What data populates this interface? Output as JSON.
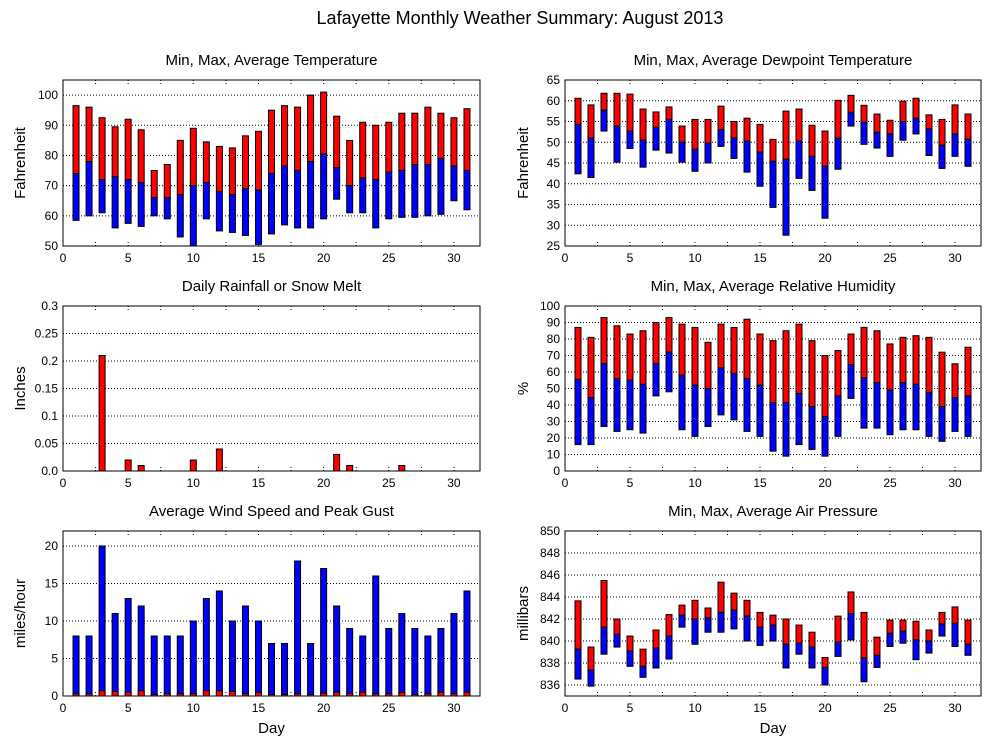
{
  "title": "Lafayette Monthly Weather Summary: August 2013",
  "colors": {
    "max": "#ff0000",
    "min": "#0000ff",
    "outline": "#000000"
  },
  "chart_data": [
    {
      "type": "bar",
      "title": "Min, Max, Average Temperature",
      "ylabel": "Fahrenheit",
      "xlabel": "",
      "xlim": [
        0,
        32
      ],
      "xticks": [
        0,
        5,
        10,
        15,
        20,
        25,
        30
      ],
      "ylim": [
        50,
        105
      ],
      "yticks": [
        50,
        60,
        70,
        80,
        90,
        100
      ],
      "ytick_labels": [
        "50",
        "60",
        "70",
        "80",
        "90",
        "100"
      ],
      "grid": true,
      "x": [
        1,
        2,
        3,
        4,
        5,
        6,
        7,
        8,
        9,
        10,
        11,
        12,
        13,
        14,
        15,
        16,
        17,
        18,
        19,
        20,
        21,
        22,
        23,
        24,
        25,
        26,
        27,
        28,
        29,
        30,
        31
      ],
      "series": [
        {
          "name": "Max",
          "values": [
            96.5,
            96,
            92.5,
            89.5,
            92,
            88.5,
            75,
            77,
            85,
            89,
            84.5,
            83,
            82.5,
            86.5,
            88,
            95,
            96.5,
            96,
            100,
            101,
            93,
            85,
            91,
            90,
            91,
            94,
            94,
            96,
            94,
            92.5,
            95.5
          ]
        },
        {
          "name": "Average",
          "values": [
            74,
            78,
            72,
            73,
            72,
            71,
            66,
            66,
            67,
            70,
            71,
            68,
            67,
            69,
            68.5,
            74,
            76.5,
            75,
            78,
            80.5,
            76,
            70,
            72.5,
            72,
            74.5,
            75,
            77,
            77,
            79,
            76.5,
            75
          ]
        },
        {
          "name": "Min",
          "values": [
            58.5,
            60,
            61,
            56,
            57.5,
            56.5,
            60,
            59,
            53,
            50,
            59,
            55,
            54.5,
            53.5,
            50.5,
            54,
            57,
            56,
            56,
            59,
            65.5,
            61,
            61,
            56,
            59,
            59.5,
            59.5,
            60,
            60.5,
            65,
            62
          ]
        }
      ]
    },
    {
      "type": "bar",
      "title": "Min, Max, Average Dewpoint Temperature",
      "ylabel": "Fahrenheit",
      "xlabel": "",
      "xlim": [
        0,
        32
      ],
      "xticks": [
        0,
        5,
        10,
        15,
        20,
        25,
        30
      ],
      "ylim": [
        25,
        65
      ],
      "yticks": [
        25,
        30,
        35,
        40,
        45,
        50,
        55,
        60,
        65
      ],
      "ytick_labels": [
        "25",
        "30",
        "35",
        "40",
        "45",
        "50",
        "55",
        "60",
        "65"
      ],
      "grid": true,
      "x": [
        1,
        2,
        3,
        4,
        5,
        6,
        7,
        8,
        9,
        10,
        11,
        12,
        13,
        14,
        15,
        16,
        17,
        18,
        19,
        20,
        21,
        22,
        23,
        24,
        25,
        26,
        27,
        28,
        29,
        30,
        31
      ],
      "series": [
        {
          "name": "Max",
          "values": [
            60.6,
            59,
            61.8,
            61.8,
            61.6,
            58,
            57.3,
            58.5,
            53.9,
            55.5,
            55.5,
            58.7,
            55,
            55.8,
            54.3,
            50.7,
            57.5,
            58,
            54.1,
            52.7,
            60.1,
            61.3,
            58.9,
            56.8,
            55.3,
            59.9,
            60.6,
            56.6,
            55.5,
            59,
            56.8
          ]
        },
        {
          "name": "Average",
          "values": [
            54.3,
            51,
            57.7,
            53.9,
            52.7,
            50.5,
            53.6,
            55.5,
            50,
            48.3,
            49.8,
            53,
            51,
            50.3,
            47.6,
            45.4,
            45.9,
            50.3,
            46.6,
            44.2,
            51,
            57.2,
            54.8,
            52.4,
            52,
            55,
            55.8,
            53.2,
            49.3,
            52,
            50.7
          ]
        },
        {
          "name": "Min",
          "values": [
            42.4,
            41.5,
            52.7,
            45.2,
            48.5,
            44,
            48.1,
            47.4,
            45.2,
            43,
            45,
            49,
            46.1,
            42.8,
            39.4,
            34.3,
            27.6,
            41.3,
            38.4,
            31.7,
            43.5,
            53.9,
            49.5,
            48.6,
            46.6,
            50.5,
            52,
            46.8,
            43.7,
            46.6,
            44.2
          ]
        }
      ]
    },
    {
      "type": "bar",
      "title": "Daily Rainfall or Snow Melt",
      "ylabel": "Inches",
      "xlabel": "",
      "xlim": [
        0,
        32
      ],
      "xticks": [
        0,
        5,
        10,
        15,
        20,
        25,
        30
      ],
      "ylim": [
        0,
        0.3
      ],
      "yticks": [
        0,
        0.05,
        0.1,
        0.15,
        0.2,
        0.25,
        0.3
      ],
      "ytick_labels": [
        "0.0",
        "0.05",
        "0.1",
        "0.15",
        "0.2",
        "0.25",
        "0.3"
      ],
      "grid": true,
      "x": [
        1,
        2,
        3,
        4,
        5,
        6,
        7,
        8,
        9,
        10,
        11,
        12,
        13,
        14,
        15,
        16,
        17,
        18,
        19,
        20,
        21,
        22,
        23,
        24,
        25,
        26,
        27,
        28,
        29,
        30,
        31
      ],
      "series": [
        {
          "name": "Rainfall",
          "values": [
            0,
            0,
            0.21,
            0,
            0.02,
            0.01,
            0,
            0,
            0,
            0.02,
            0,
            0.04,
            0,
            0,
            0,
            0,
            0,
            0,
            0,
            0,
            0.03,
            0.01,
            0,
            0,
            0,
            0.01,
            0,
            0,
            0,
            0,
            0
          ]
        }
      ]
    },
    {
      "type": "bar",
      "title": "Min, Max, Average Relative Humidity",
      "ylabel": "%",
      "xlabel": "",
      "xlim": [
        0,
        32
      ],
      "xticks": [
        0,
        5,
        10,
        15,
        20,
        25,
        30
      ],
      "ylim": [
        0,
        100
      ],
      "yticks": [
        0,
        10,
        20,
        30,
        40,
        50,
        60,
        70,
        80,
        90,
        100
      ],
      "ytick_labels": [
        "0",
        "10",
        "20",
        "30",
        "40",
        "50",
        "60",
        "70",
        "80",
        "90",
        "100"
      ],
      "grid": true,
      "x": [
        1,
        2,
        3,
        4,
        5,
        6,
        7,
        8,
        9,
        10,
        11,
        12,
        13,
        14,
        15,
        16,
        17,
        18,
        19,
        20,
        21,
        22,
        23,
        24,
        25,
        26,
        27,
        28,
        29,
        30,
        31
      ],
      "series": [
        {
          "name": "Max",
          "values": [
            87,
            81,
            93,
            88,
            83,
            85,
            90,
            93,
            89,
            87,
            78,
            89,
            87,
            92,
            83,
            79,
            85,
            89,
            79,
            70,
            73,
            83,
            87,
            85,
            77,
            81,
            82,
            81,
            72,
            65,
            75
          ]
        },
        {
          "name": "Average",
          "values": [
            55.5,
            44.5,
            65,
            56,
            55,
            52.5,
            65,
            72,
            58,
            52,
            50,
            62.5,
            59,
            56,
            52,
            41.5,
            41.5,
            47,
            39,
            33,
            45.5,
            64.5,
            56.5,
            53.5,
            49,
            53.5,
            52.5,
            47.5,
            39,
            44.5,
            45.5
          ]
        },
        {
          "name": "Min",
          "values": [
            16,
            16,
            27,
            24,
            25,
            23,
            45.5,
            48,
            25,
            21,
            27,
            34,
            31,
            24,
            21,
            12,
            9,
            16,
            13,
            9,
            21,
            44,
            26,
            26,
            22,
            25,
            25,
            21,
            18,
            24,
            21
          ]
        }
      ]
    },
    {
      "type": "bar",
      "title": "Average Wind Speed and Peak Gust",
      "ylabel": "miles/hour",
      "xlabel": "Day",
      "xlim": [
        0,
        32
      ],
      "xticks": [
        0,
        5,
        10,
        15,
        20,
        25,
        30
      ],
      "ylim": [
        0,
        22
      ],
      "yticks": [
        0,
        5,
        10,
        15,
        20
      ],
      "ytick_labels": [
        "0",
        "5",
        "10",
        "15",
        "20"
      ],
      "grid": true,
      "x": [
        1,
        2,
        3,
        4,
        5,
        6,
        7,
        8,
        9,
        10,
        11,
        12,
        13,
        14,
        15,
        16,
        17,
        18,
        19,
        20,
        21,
        22,
        23,
        24,
        25,
        26,
        27,
        28,
        29,
        30,
        31
      ],
      "series": [
        {
          "name": "Peak Gust",
          "values": [
            8,
            8,
            20,
            11,
            13,
            12,
            8,
            8,
            8,
            10,
            13,
            14,
            10,
            12,
            10,
            7,
            7,
            18,
            7,
            17,
            12,
            9,
            8,
            16,
            9,
            11,
            9,
            8,
            9,
            11,
            14
          ]
        },
        {
          "name": "Average Wind Speed",
          "values": [
            0.3,
            0.3,
            0.7,
            0.6,
            0.5,
            0.7,
            0.2,
            0.3,
            0.3,
            0.3,
            0.7,
            0.7,
            0.6,
            0.3,
            0.5,
            0.2,
            0.2,
            0.3,
            0.2,
            0.4,
            0.5,
            0.3,
            0.5,
            0.3,
            0.3,
            0.5,
            0.2,
            0.3,
            0.5,
            0.3,
            0.5
          ]
        }
      ]
    },
    {
      "type": "bar",
      "title": "Min, Max, Average Air Pressure",
      "ylabel": "millibars",
      "xlabel": "Day",
      "xlim": [
        0,
        32
      ],
      "xticks": [
        0,
        5,
        10,
        15,
        20,
        25,
        30
      ],
      "ylim": [
        835,
        850
      ],
      "yticks": [
        836,
        838,
        840,
        842,
        844,
        846,
        848,
        850
      ],
      "ytick_labels": [
        "836",
        "838",
        "840",
        "842",
        "844",
        "846",
        "848",
        "850"
      ],
      "grid": true,
      "x": [
        1,
        2,
        3,
        4,
        5,
        6,
        7,
        8,
        9,
        10,
        11,
        12,
        13,
        14,
        15,
        16,
        17,
        18,
        19,
        20,
        21,
        22,
        23,
        24,
        25,
        26,
        27,
        28,
        29,
        30,
        31
      ],
      "series": [
        {
          "name": "Max",
          "values": [
            843.65,
            839.45,
            845.5,
            842,
            840.45,
            839.26,
            841,
            842.4,
            843.26,
            843.7,
            843,
            845.35,
            844.35,
            843.7,
            842.6,
            842.35,
            842,
            841.45,
            840.8,
            838.5,
            842.26,
            844.46,
            842.6,
            840.35,
            841.9,
            841.9,
            841.8,
            841,
            842.6,
            843.1,
            841.9
          ]
        },
        {
          "name": "Average",
          "values": [
            839.26,
            837.36,
            841.26,
            840.6,
            839.1,
            837.7,
            839.36,
            840.45,
            842.35,
            842,
            842.1,
            842.6,
            842.8,
            842.26,
            841.26,
            841.45,
            839.7,
            839.8,
            839.45,
            837.6,
            839.9,
            842.5,
            838.45,
            838.7,
            840.7,
            840.9,
            840.1,
            840,
            841.55,
            841.6,
            839.7
          ]
        },
        {
          "name": "Min",
          "values": [
            836.54,
            835.9,
            838.8,
            839.45,
            837.7,
            836.7,
            837.55,
            838.36,
            841.26,
            839.7,
            840.8,
            840.8,
            841.1,
            840,
            839.6,
            840,
            837.55,
            838.8,
            837.55,
            836,
            838.6,
            840.1,
            836.3,
            837.6,
            839.5,
            839.8,
            838.3,
            838.9,
            840.45,
            839.5,
            838.7
          ]
        }
      ]
    }
  ]
}
